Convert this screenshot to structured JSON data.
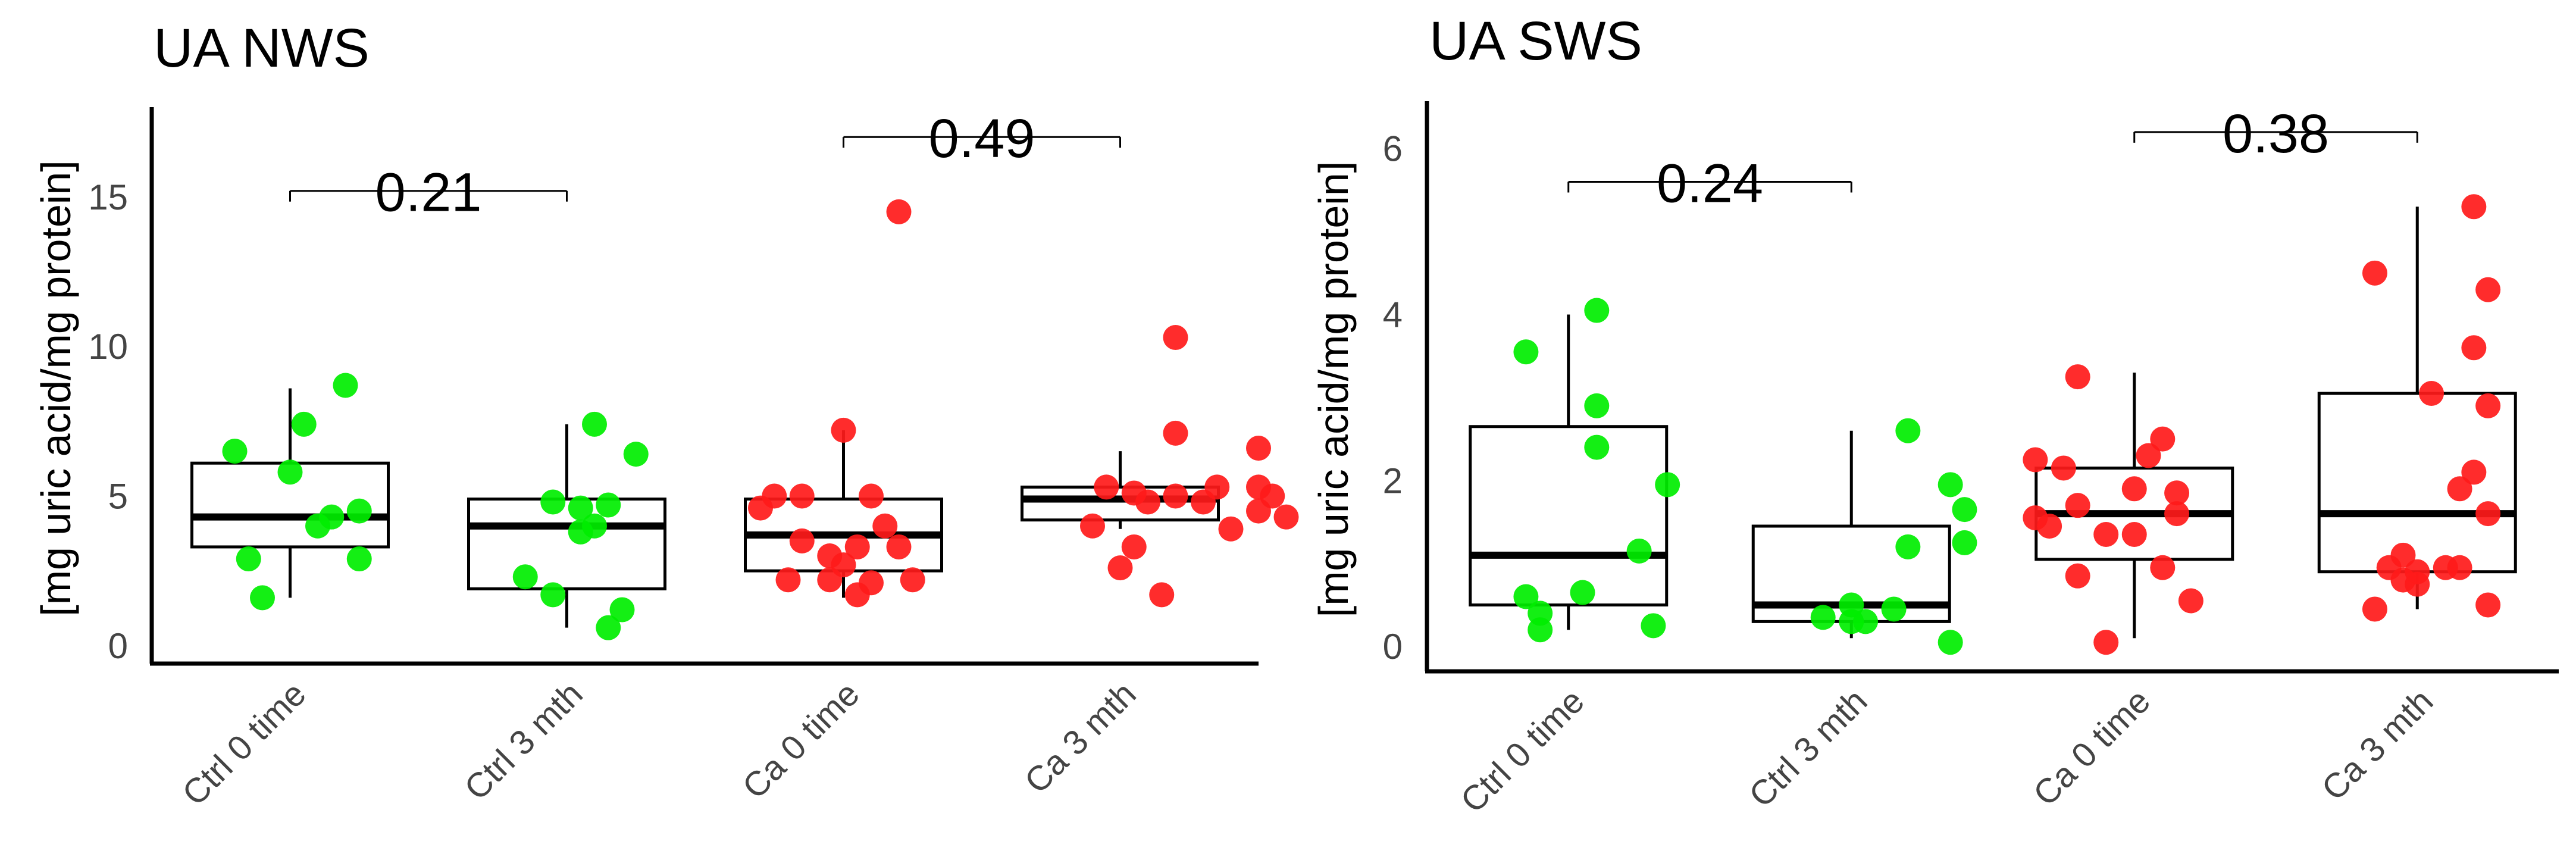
{
  "chart_data": [
    {
      "type": "box",
      "title": "UA NWS",
      "ylabel": "[mg uric acid/mg protein]",
      "xlabel": "",
      "ylim": [
        -0.6,
        17.8
      ],
      "yticks": [
        0,
        5,
        10,
        15
      ],
      "categories": [
        "Ctrl 0 time",
        "Ctrl 3 mth",
        "Ca 0 time",
        "Ca 3 mth"
      ],
      "point_colors": [
        "#00ee00",
        "#00ee00",
        "#ff1a1a",
        "#ff1a1a"
      ],
      "boxes": [
        {
          "q1": 3.3,
          "median": 4.3,
          "q3": 6.1,
          "whisker_low": 1.6,
          "whisker_high": 8.6
        },
        {
          "q1": 1.9,
          "median": 4.0,
          "q3": 4.9,
          "whisker_low": 0.6,
          "whisker_high": 7.4
        },
        {
          "q1": 2.5,
          "median": 3.7,
          "q3": 4.9,
          "whisker_low": 1.6,
          "whisker_high": 7.2
        },
        {
          "q1": 4.2,
          "median": 4.9,
          "q3": 5.3,
          "whisker_low": 3.9,
          "whisker_high": 6.5
        }
      ],
      "points": [
        [
          [
            0.8,
            6.5
          ],
          [
            1.2,
            8.7
          ],
          [
            1.0,
            5.8
          ],
          [
            1.05,
            7.4
          ],
          [
            1.15,
            4.3
          ],
          [
            1.25,
            4.5
          ],
          [
            1.1,
            4.0
          ],
          [
            0.85,
            2.9
          ],
          [
            1.25,
            2.9
          ],
          [
            0.9,
            1.6
          ]
        ],
        [
          [
            2.1,
            7.4
          ],
          [
            2.25,
            6.4
          ],
          [
            1.95,
            4.8
          ],
          [
            2.05,
            4.6
          ],
          [
            2.15,
            4.7
          ],
          [
            2.1,
            4.0
          ],
          [
            2.05,
            3.8
          ],
          [
            1.85,
            2.3
          ],
          [
            1.95,
            1.7
          ],
          [
            2.2,
            1.2
          ],
          [
            2.15,
            0.6
          ]
        ],
        [
          [
            3.0,
            7.2
          ],
          [
            3.2,
            14.5
          ],
          [
            2.75,
            5.0
          ],
          [
            2.85,
            5.0
          ],
          [
            2.7,
            4.6
          ],
          [
            3.1,
            5.0
          ],
          [
            3.15,
            4.0
          ],
          [
            2.85,
            3.5
          ],
          [
            3.05,
            3.3
          ],
          [
            2.95,
            3.0
          ],
          [
            3.2,
            3.3
          ],
          [
            2.8,
            2.2
          ],
          [
            3.0,
            2.7
          ],
          [
            3.1,
            2.1
          ],
          [
            2.95,
            2.2
          ],
          [
            3.25,
            2.2
          ],
          [
            3.05,
            1.7
          ]
        ],
        [
          [
            4.2,
            10.3
          ],
          [
            4.2,
            7.1
          ],
          [
            4.5,
            6.6
          ],
          [
            3.95,
            5.3
          ],
          [
            4.05,
            5.1
          ],
          [
            4.2,
            5.0
          ],
          [
            4.5,
            5.3
          ],
          [
            4.35,
            5.3
          ],
          [
            4.55,
            5.0
          ],
          [
            4.1,
            4.8
          ],
          [
            4.3,
            4.8
          ],
          [
            4.5,
            4.5
          ],
          [
            4.6,
            4.3
          ],
          [
            4.4,
            3.9
          ],
          [
            3.9,
            4.0
          ],
          [
            4.05,
            3.3
          ],
          [
            4.0,
            2.6
          ],
          [
            4.15,
            1.7
          ]
        ]
      ],
      "comparisons": [
        {
          "from": 1,
          "to": 2,
          "y": 15.2,
          "label": "0.21"
        },
        {
          "from": 3,
          "to": 4,
          "y": 17.0,
          "label": "0.49"
        }
      ]
    },
    {
      "type": "box",
      "title": "UA SWS",
      "ylabel": "[mg uric acid/mg protein]",
      "xlabel": "",
      "ylim": [
        -0.3,
        6.5
      ],
      "yticks": [
        0,
        2,
        4,
        6
      ],
      "categories": [
        "Ctrl 0 time",
        "Ctrl 3 mth",
        "Ca 0 time",
        "Ca 3 mth"
      ],
      "point_colors": [
        "#00ee00",
        "#00ee00",
        "#ff1a1a",
        "#ff1a1a"
      ],
      "boxes": [
        {
          "q1": 0.5,
          "median": 1.1,
          "q3": 2.65,
          "whisker_low": 0.2,
          "whisker_high": 4.0
        },
        {
          "q1": 0.3,
          "median": 0.5,
          "q3": 1.45,
          "whisker_low": 0.1,
          "whisker_high": 2.6
        },
        {
          "q1": 1.05,
          "median": 1.6,
          "q3": 2.15,
          "whisker_low": 0.1,
          "whisker_high": 3.3
        },
        {
          "q1": 0.9,
          "median": 1.6,
          "q3": 3.05,
          "whisker_low": 0.45,
          "whisker_high": 5.3
        }
      ],
      "points": [
        [
          [
            1.1,
            4.05
          ],
          [
            0.85,
            3.55
          ],
          [
            1.1,
            2.9
          ],
          [
            1.1,
            2.4
          ],
          [
            1.35,
            1.95
          ],
          [
            1.25,
            1.15
          ],
          [
            0.85,
            0.6
          ],
          [
            1.05,
            0.65
          ],
          [
            0.9,
            0.4
          ],
          [
            0.9,
            0.2
          ],
          [
            1.3,
            0.25
          ]
        ],
        [
          [
            2.2,
            2.6
          ],
          [
            2.35,
            1.95
          ],
          [
            2.4,
            1.65
          ],
          [
            2.2,
            1.2
          ],
          [
            2.4,
            1.25
          ],
          [
            2.0,
            0.5
          ],
          [
            2.15,
            0.45
          ],
          [
            1.9,
            0.35
          ],
          [
            2.05,
            0.3
          ],
          [
            2.0,
            0.3
          ],
          [
            2.35,
            0.05
          ]
        ],
        [
          [
            2.8,
            3.25
          ],
          [
            2.65,
            2.25
          ],
          [
            3.05,
            2.3
          ],
          [
            3.1,
            2.5
          ],
          [
            2.75,
            2.15
          ],
          [
            3.0,
            1.9
          ],
          [
            3.15,
            1.85
          ],
          [
            2.65,
            1.55
          ],
          [
            2.7,
            1.45
          ],
          [
            2.9,
            1.35
          ],
          [
            3.15,
            1.6
          ],
          [
            2.8,
            1.7
          ],
          [
            3.0,
            1.35
          ],
          [
            3.1,
            0.95
          ],
          [
            2.8,
            0.85
          ],
          [
            3.2,
            0.55
          ],
          [
            2.9,
            0.05
          ]
        ],
        [
          [
            4.2,
            5.3
          ],
          [
            3.85,
            4.5
          ],
          [
            4.25,
            4.3
          ],
          [
            4.2,
            3.6
          ],
          [
            4.05,
            3.05
          ],
          [
            4.25,
            2.9
          ],
          [
            4.2,
            2.1
          ],
          [
            4.15,
            1.9
          ],
          [
            4.25,
            1.6
          ],
          [
            3.95,
            1.1
          ],
          [
            4.1,
            0.95
          ],
          [
            3.9,
            0.95
          ],
          [
            4.0,
            0.9
          ],
          [
            4.15,
            0.95
          ],
          [
            3.95,
            0.8
          ],
          [
            4.0,
            0.75
          ],
          [
            3.85,
            0.45
          ],
          [
            4.25,
            0.5
          ]
        ]
      ],
      "comparisons": [
        {
          "from": 1,
          "to": 2,
          "y": 5.6,
          "label": "0.24"
        },
        {
          "from": 3,
          "to": 4,
          "y": 6.2,
          "label": "0.38"
        }
      ]
    }
  ]
}
